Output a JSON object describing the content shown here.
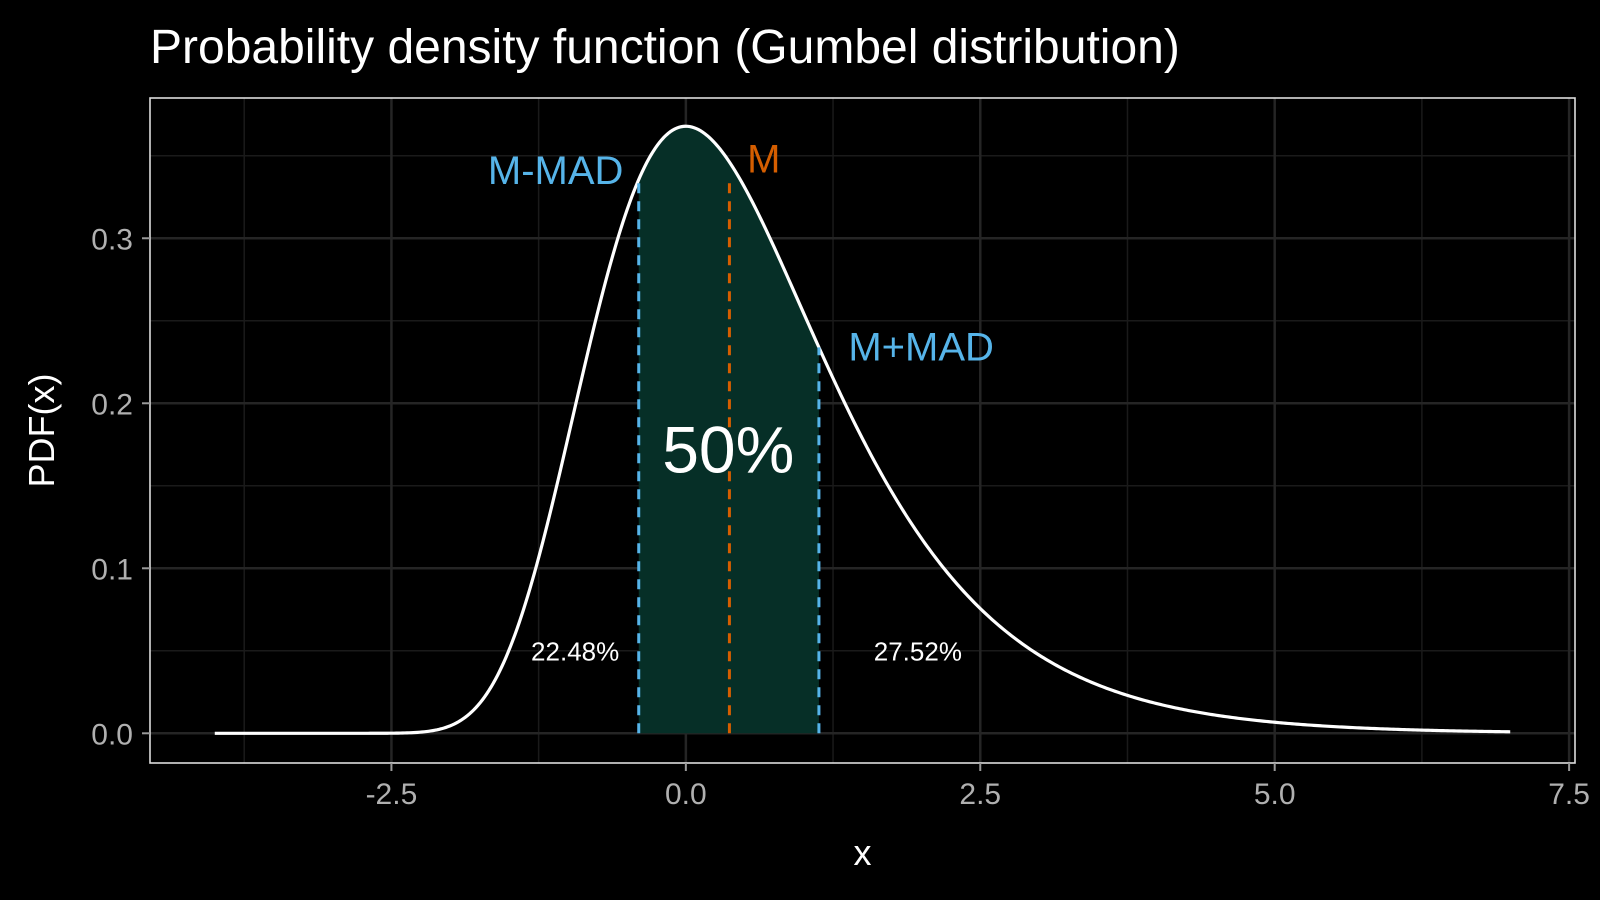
{
  "chart_data": {
    "type": "area",
    "title": "Probability density function (Gumbel distribution)",
    "xlabel": "x",
    "ylabel": "PDF(x)",
    "xlim": [
      -4.55,
      7.55
    ],
    "ylim": [
      -0.018,
      0.385
    ],
    "x_ticks": [
      "-2.5",
      "0.0",
      "2.5",
      "5.0",
      "7.5"
    ],
    "x_tick_values": [
      -2.5,
      0.0,
      2.5,
      5.0,
      7.5
    ],
    "y_ticks": [
      "0.0",
      "0.1",
      "0.2",
      "0.3"
    ],
    "y_tick_values": [
      0.0,
      0.1,
      0.2,
      0.3
    ],
    "grid": true,
    "distribution": {
      "name": "Gumbel",
      "location": 0,
      "scale": 1,
      "x_range": [
        -4,
        7
      ]
    },
    "series": [
      {
        "x": [
          -4.0,
          -3.0,
          -2.5,
          -2.0,
          -1.75,
          -1.5,
          -1.25,
          -1.0,
          -0.75,
          -0.5,
          -0.25,
          0.0,
          0.25,
          0.5,
          0.75,
          1.0,
          1.25,
          1.5,
          1.75,
          2.0,
          2.5,
          3.0,
          3.5,
          4.0,
          4.5,
          5.0,
          5.5,
          6.0,
          6.5,
          7.0
        ],
        "y": [
          0.0,
          0.0,
          0.0,
          0.0047,
          0.0178,
          0.0505,
          0.1107,
          0.1794,
          0.2539,
          0.3122,
          0.3488,
          0.3679,
          0.3603,
          0.3307,
          0.2935,
          0.2546,
          0.215,
          0.1794,
          0.1479,
          0.1182,
          0.0753,
          0.0473,
          0.0294,
          0.018,
          0.0111,
          0.0067,
          0.0041,
          0.0025,
          0.0015,
          0.0009
        ]
      }
    ],
    "shaded_region": {
      "from": -0.4,
      "to": 1.13,
      "label": "50%"
    },
    "markers": [
      {
        "label": "M-MAD",
        "x": -0.4,
        "color": "#56B4E9"
      },
      {
        "label": "M",
        "x": 0.37,
        "color": "#D55E00"
      },
      {
        "label": "M+MAD",
        "x": 1.13,
        "color": "#56B4E9"
      }
    ],
    "tail_labels": {
      "left": "22.48%",
      "right": "27.52%"
    },
    "colors": {
      "background": "#000000",
      "curve": "#ffffff",
      "shade": "#062f27",
      "grid": "#252525",
      "panel_border": "#dddddd"
    }
  }
}
